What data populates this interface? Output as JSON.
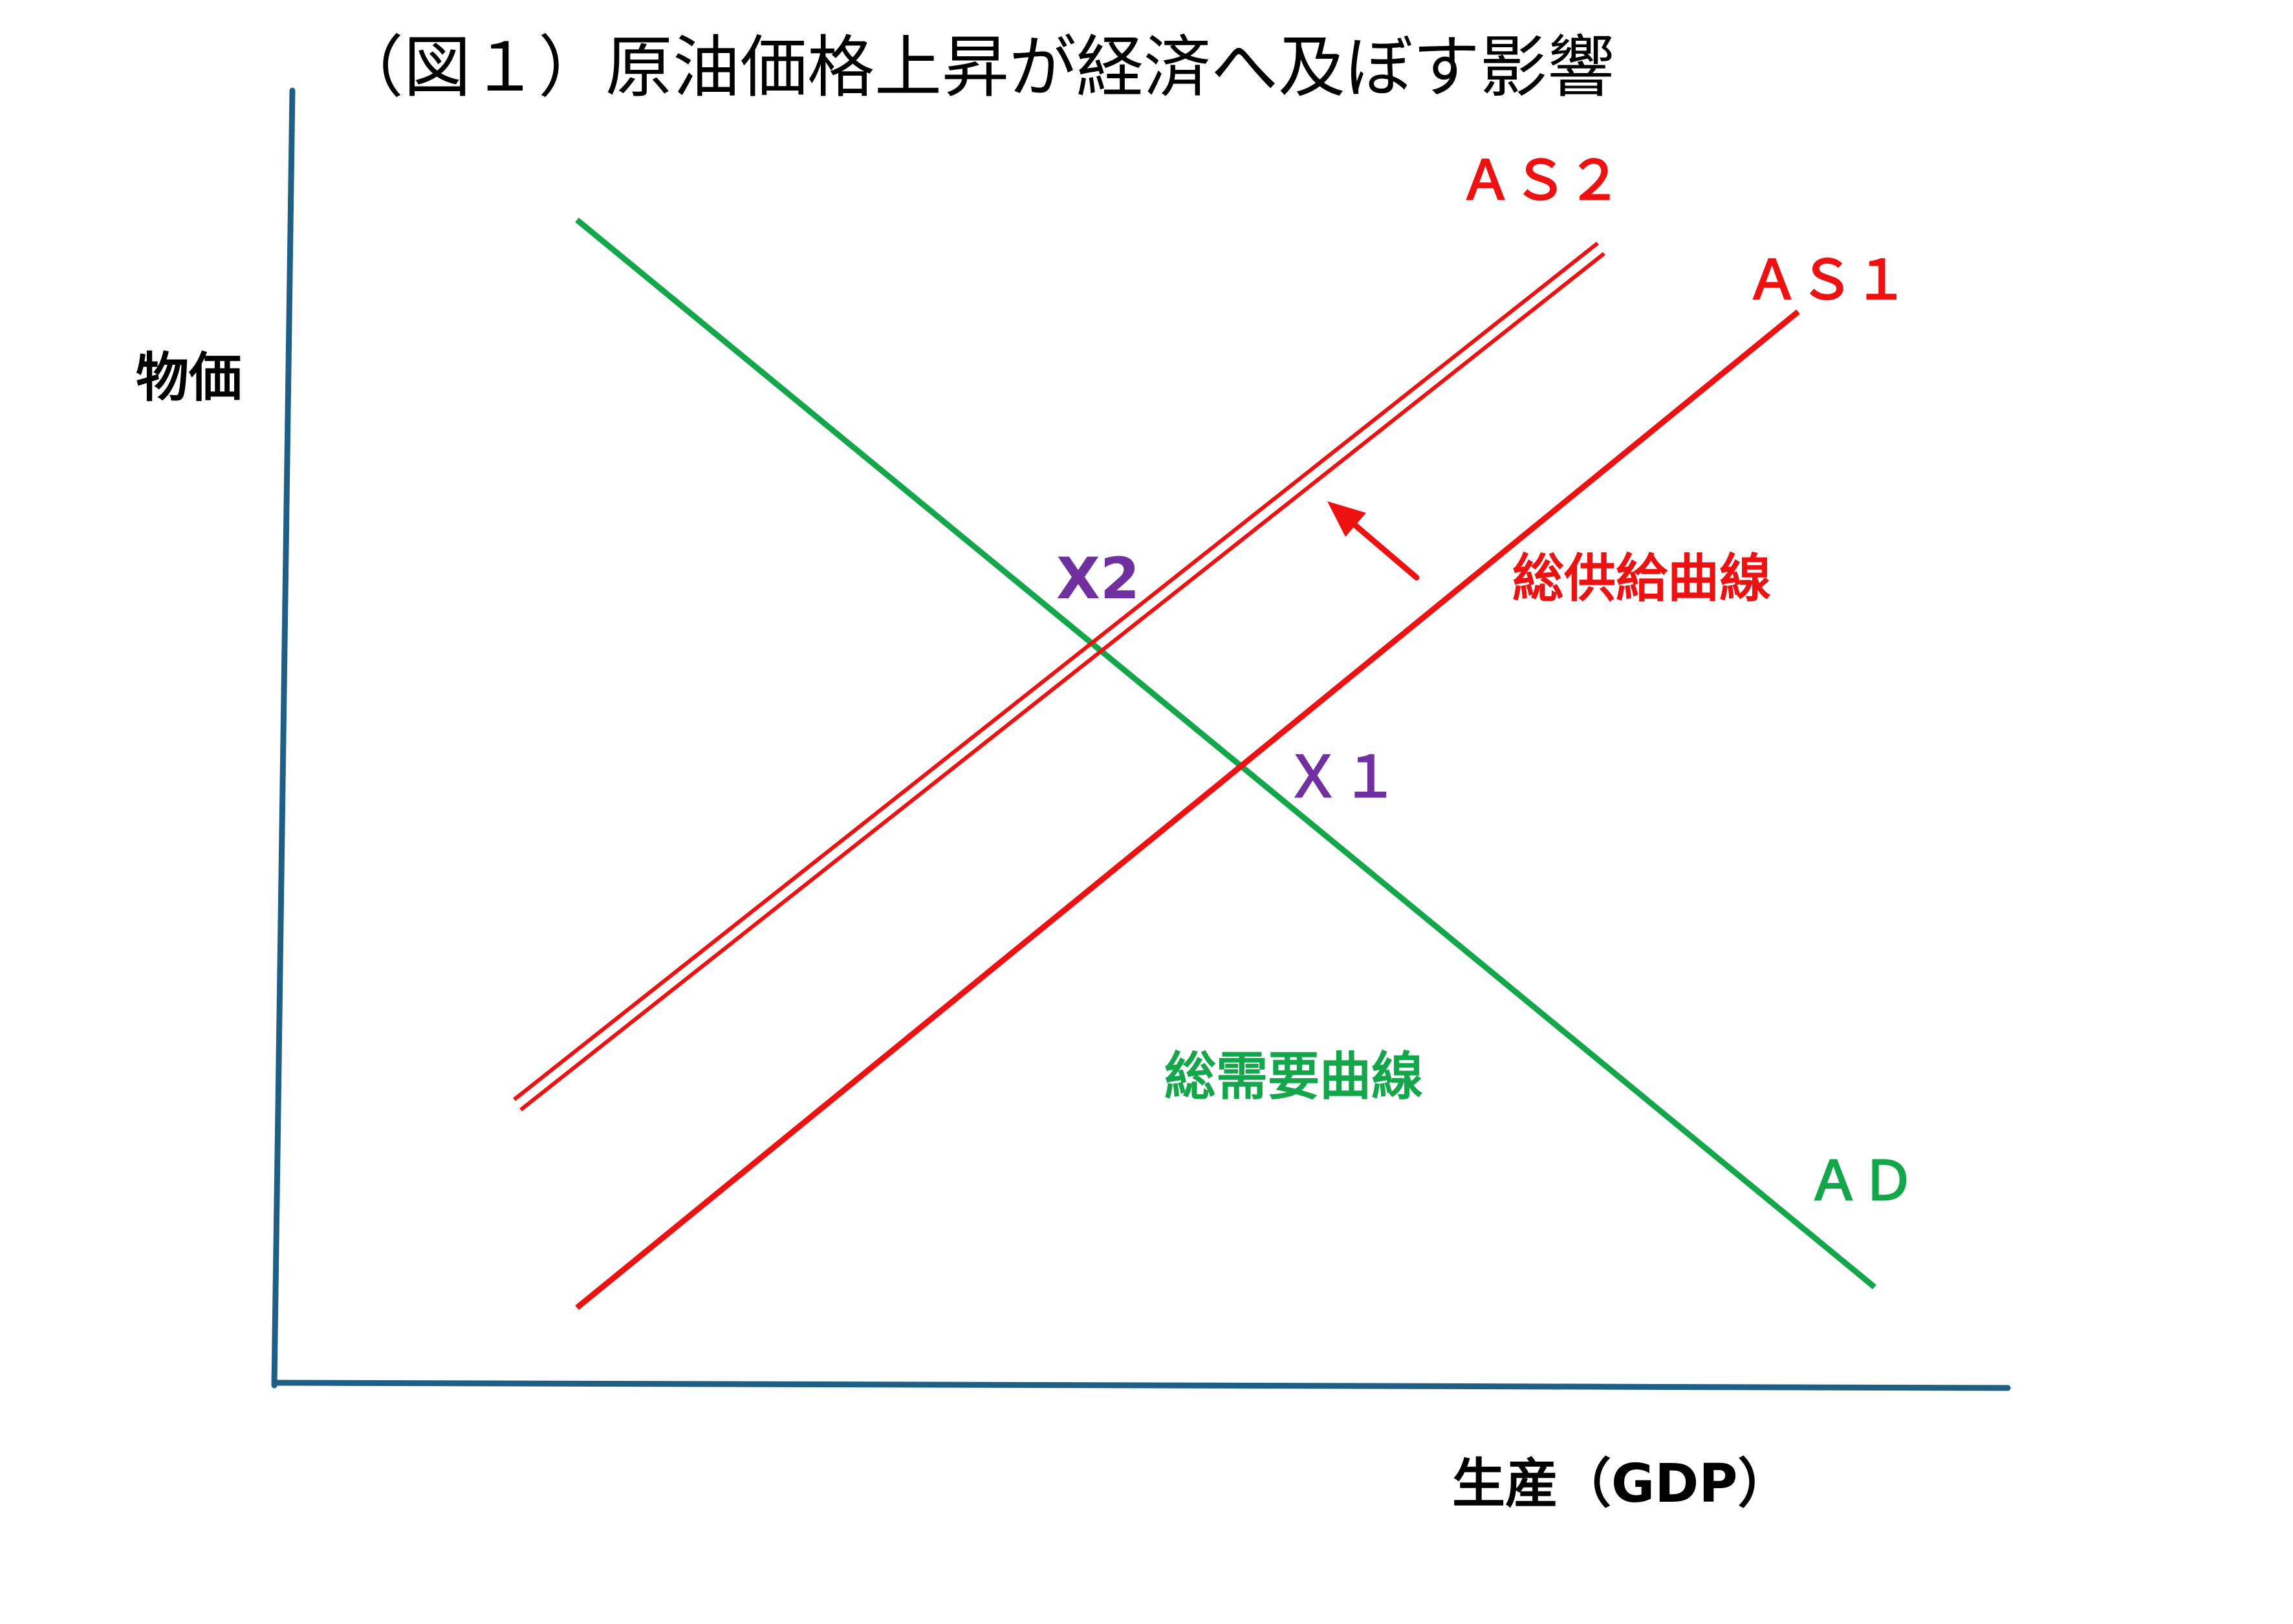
{
  "title": "（図１）原油価格上昇が経済へ及ぼす影響",
  "axes": {
    "y_label": "物価",
    "x_label": "生産（GDP）"
  },
  "curves": {
    "as2": {
      "label": "ＡＳ２"
    },
    "as1": {
      "label": "ＡＳ１"
    },
    "ad": {
      "label": "ＡＤ"
    }
  },
  "captions": {
    "supply": "総供給曲線",
    "demand": "総需要曲線"
  },
  "points": {
    "x1": "Ｘ１",
    "x2": "X2"
  },
  "colors": {
    "axis": "#1f5f85",
    "supply": "#ee1111",
    "demand": "#13a64a",
    "point": "#7030a0",
    "text": "#000000"
  }
}
